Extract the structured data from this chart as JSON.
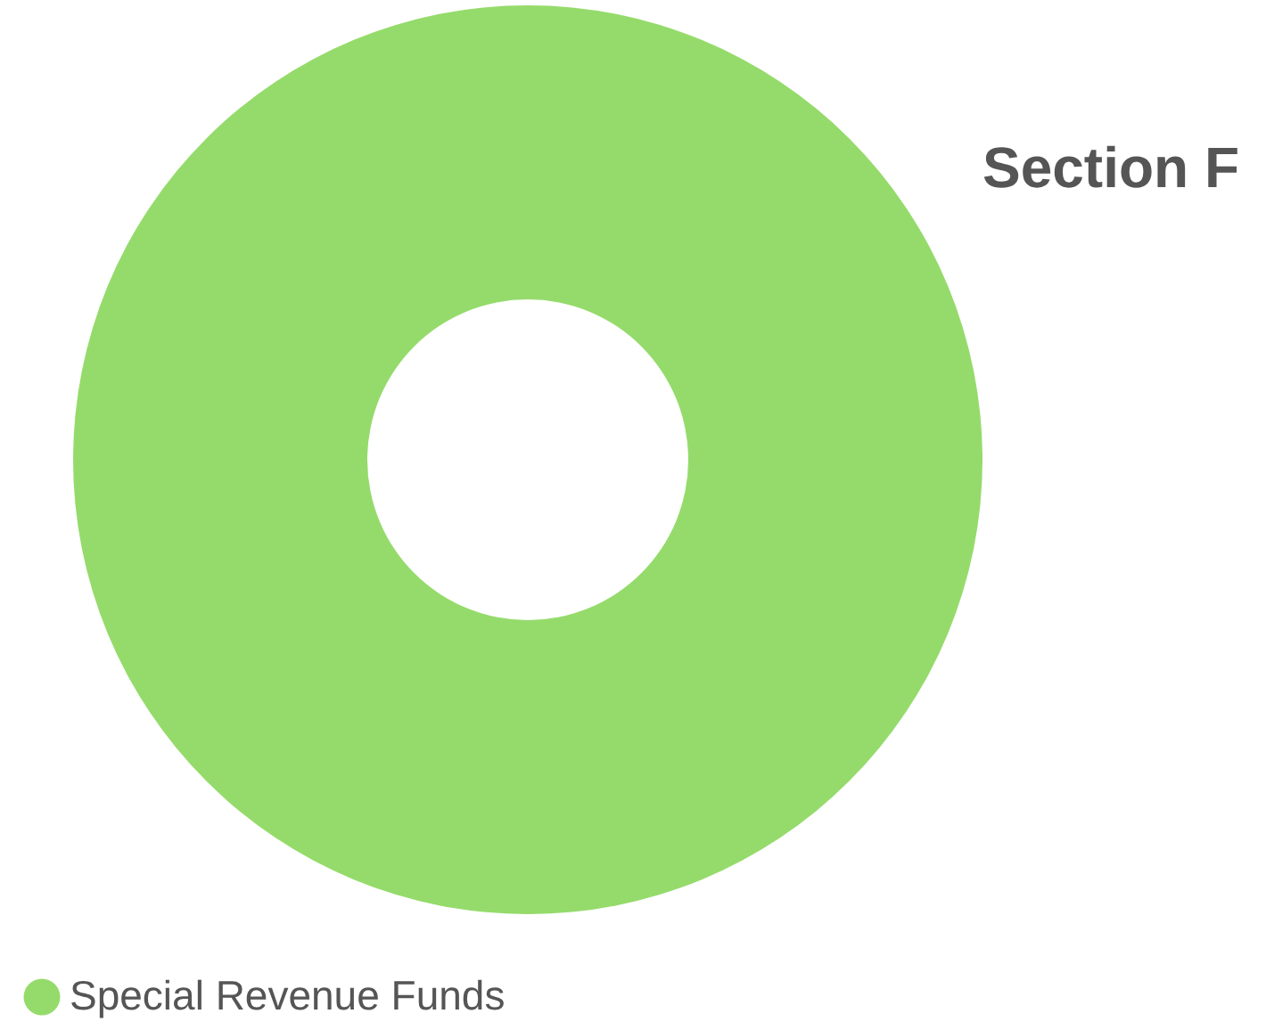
{
  "chart_data": {
    "type": "donut",
    "title": "Section F",
    "categories": [
      "Special Revenue Funds"
    ],
    "values": [
      100
    ],
    "colors": [
      "#95db6b"
    ],
    "legend": "bottom left"
  }
}
